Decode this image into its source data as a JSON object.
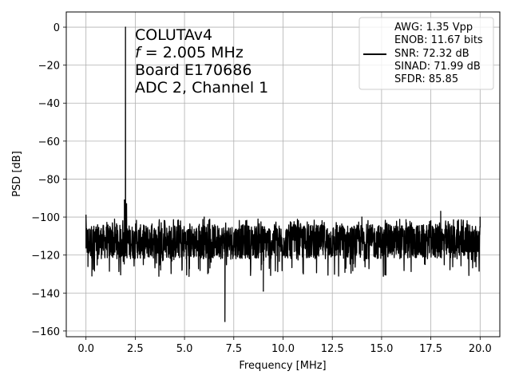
{
  "chart_data": {
    "type": "line",
    "xlabel": "Frequency [MHz]",
    "ylabel": "PSD [dB]",
    "xlim": [
      -1.0,
      21.0
    ],
    "ylim": [
      -163.0,
      8.0
    ],
    "xticks": [
      0.0,
      2.5,
      5.0,
      7.5,
      10.0,
      12.5,
      15.0,
      17.5,
      20.0
    ],
    "xtick_labels": [
      "0.0",
      "2.5",
      "5.0",
      "7.5",
      "10.0",
      "12.5",
      "15.0",
      "17.5",
      "20.0"
    ],
    "yticks": [
      0,
      -20,
      -40,
      -60,
      -80,
      -100,
      -120,
      -140,
      -160
    ],
    "ytick_labels": [
      "0",
      "−20",
      "−40",
      "−60",
      "−80",
      "−100",
      "−120",
      "−140",
      "−160"
    ],
    "grid": true,
    "legend_position": "top-right",
    "line_color": "#000000",
    "annotation": {
      "line1": "COLUTAv4",
      "line2_var": "f",
      "line2_rest": " = 2.005 MHz",
      "line3": "Board E170686",
      "line4": "ADC 2, Channel 1"
    },
    "legend": {
      "lines": [
        "AWG: 1.35 Vpp",
        "ENOB: 11.67 bits",
        "SNR: 72.32 dB",
        "SINAD: 71.99 dB",
        "SFDR: 85.85"
      ]
    },
    "series": [
      {
        "noise_floor_db": -113,
        "noise_band_db": [
          -122,
          -104
        ],
        "points": [
          {
            "x": 0.0,
            "y": -99
          },
          {
            "x": 0.05,
            "y": -112
          },
          {
            "x": 0.1,
            "y": -126
          },
          {
            "x": 0.3,
            "y": -131
          },
          {
            "x": 1.95,
            "y": -91
          },
          {
            "x": 2.005,
            "y": 0
          },
          {
            "x": 2.06,
            "y": -93
          },
          {
            "x": 4.0,
            "y": -102
          },
          {
            "x": 6.0,
            "y": -100
          },
          {
            "x": 7.05,
            "y": -155
          },
          {
            "x": 9.0,
            "y": -139
          },
          {
            "x": 14.0,
            "y": -100
          },
          {
            "x": 18.0,
            "y": -97
          },
          {
            "x": 20.0,
            "y": -100
          }
        ]
      }
    ]
  }
}
